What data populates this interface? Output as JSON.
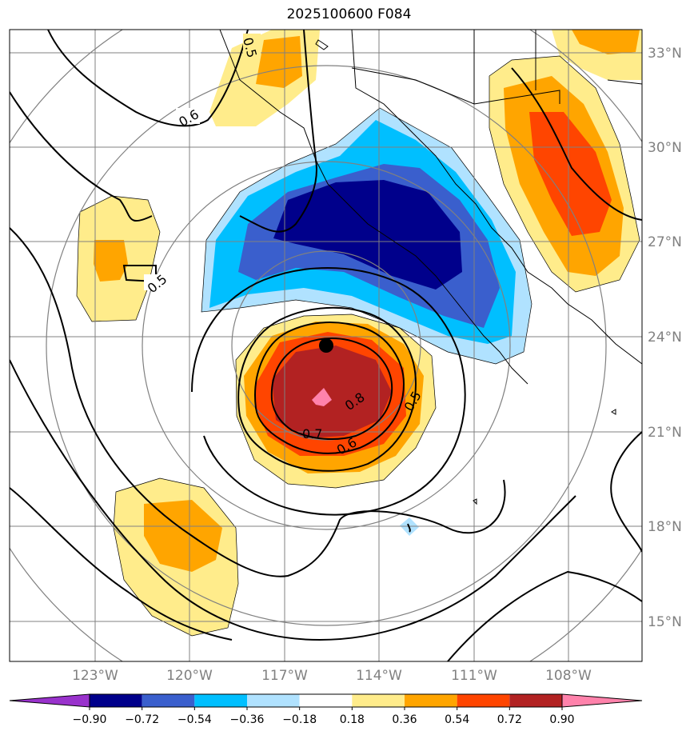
{
  "title": "2025100600 F084",
  "map": {
    "lat_labels": [
      "33°N",
      "30°N",
      "27°N",
      "24°N",
      "21°N",
      "18°N",
      "15°N"
    ],
    "lon_labels": [
      "123°W",
      "120°W",
      "117°W",
      "114°W",
      "111°W",
      "108°W"
    ],
    "center_marker": {
      "lat": 23.7,
      "lon": -115.7
    },
    "contour_labels": [
      "0.5",
      "0.6",
      "0.5",
      "0.8",
      "0.7",
      "0.6",
      "0.5"
    ]
  },
  "colorbar": {
    "ticks": [
      "−0.90",
      "−0.72",
      "−0.54",
      "−0.36",
      "−0.18",
      "0.18",
      "0.36",
      "0.54",
      "0.72",
      "0.90"
    ],
    "colors": [
      "#9932cc",
      "#00008b",
      "#3a5fcd",
      "#00bfff",
      "#b0e2ff",
      "#ffffff",
      "#ffec8b",
      "#ffa500",
      "#ff4500",
      "#b22222",
      "#ff82ab"
    ]
  }
}
